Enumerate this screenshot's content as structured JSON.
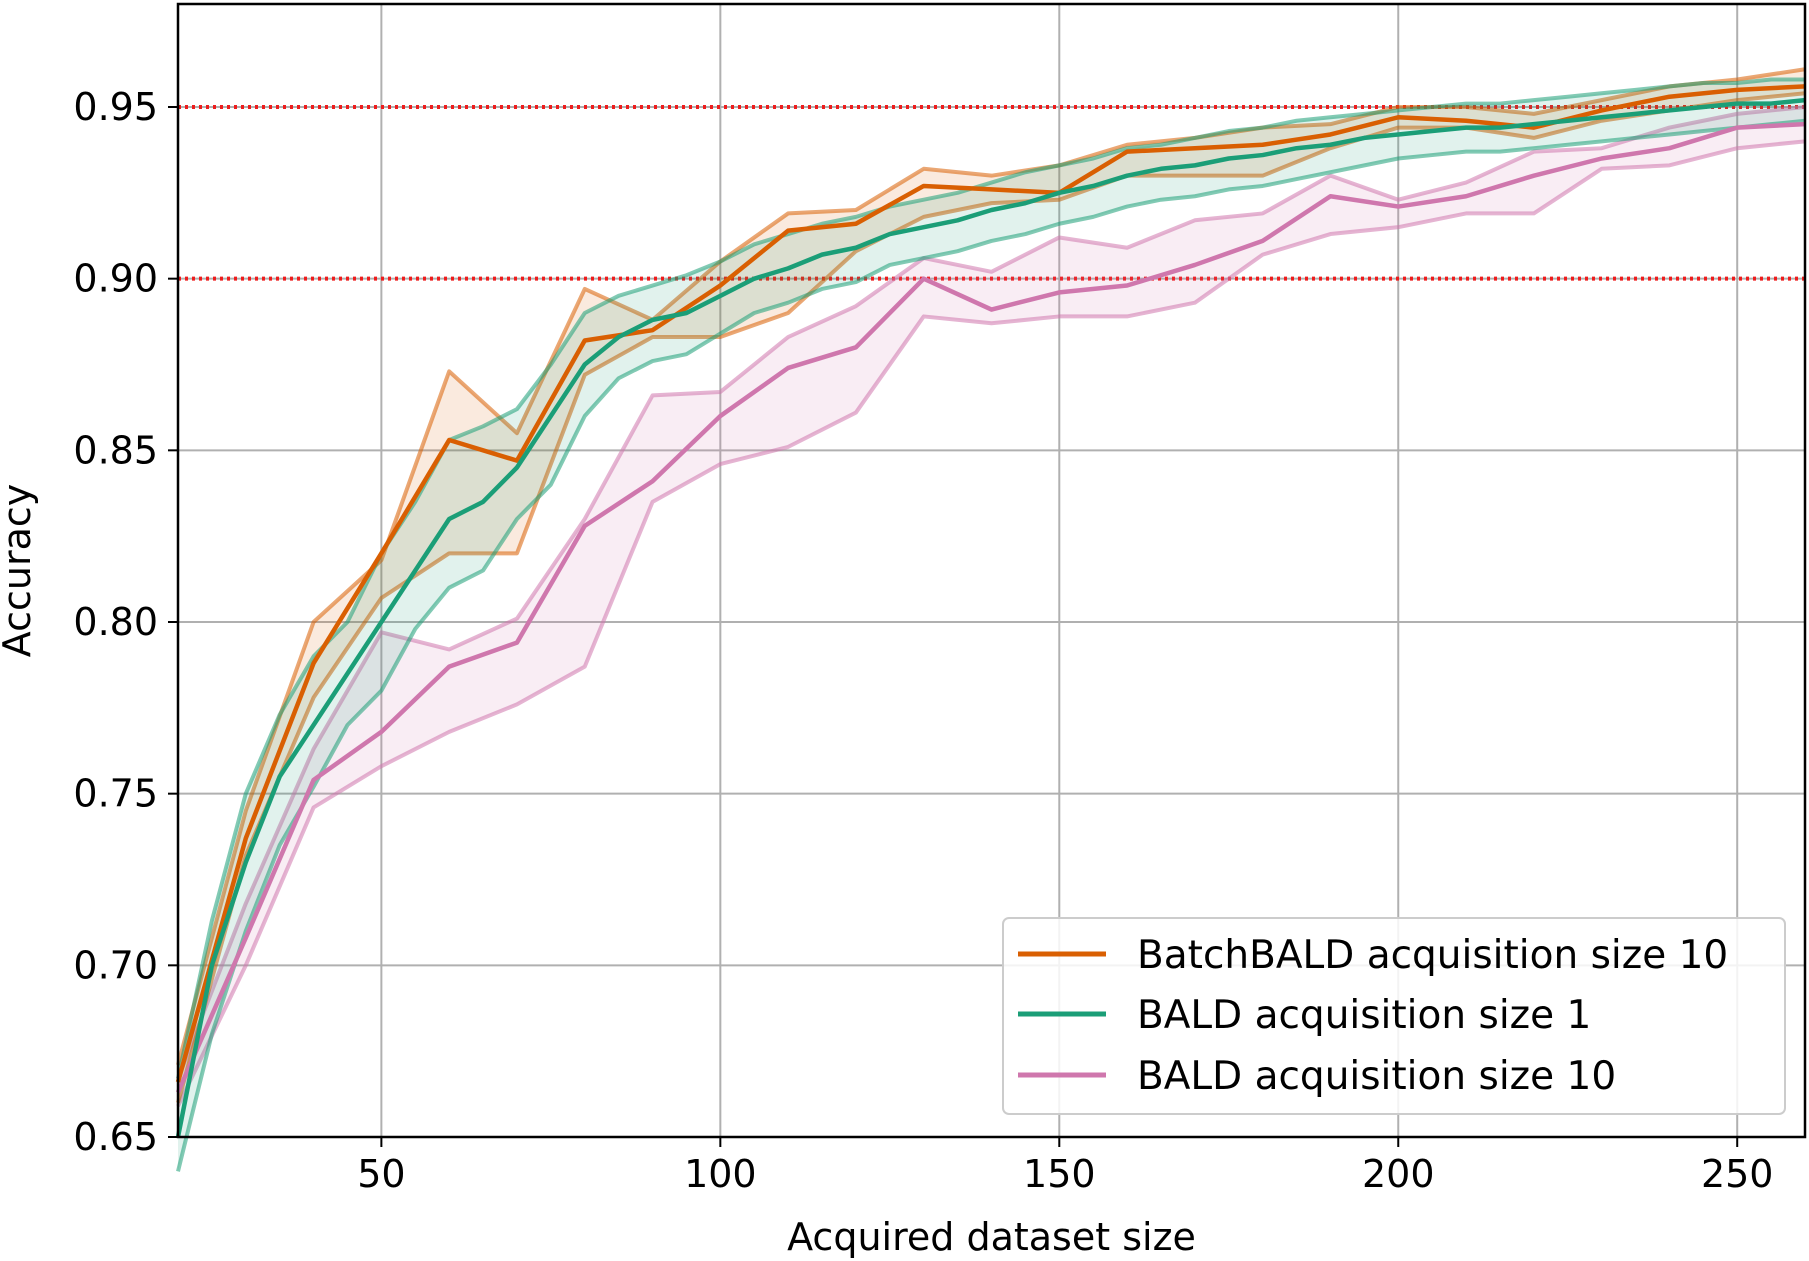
{
  "chart_data": {
    "type": "line",
    "title": "",
    "xlabel": "Acquired dataset size",
    "ylabel": "Accuracy",
    "xlim": [
      20,
      260
    ],
    "ylim": [
      0.65,
      0.98
    ],
    "x_ticks": [
      50,
      100,
      150,
      200,
      250
    ],
    "y_ticks": [
      0.65,
      0.7,
      0.75,
      0.8,
      0.85,
      0.9,
      0.95
    ],
    "x_tick_labels": [
      "50",
      "100",
      "150",
      "200",
      "250"
    ],
    "y_tick_labels": [
      "0.65",
      "0.70",
      "0.75",
      "0.80",
      "0.85",
      "0.90",
      "0.95"
    ],
    "grid": true,
    "legend_position": "bottom-right",
    "reference_lines": [
      {
        "y": 0.95,
        "style": "dotted",
        "color": "#ee1c1c"
      },
      {
        "y": 0.9,
        "style": "dotted",
        "color": "#ee1c1c"
      }
    ],
    "series": [
      {
        "name": "BatchBALD acquisition size 10",
        "color": "#d95f02",
        "x": [
          20,
          30,
          40,
          50,
          60,
          70,
          80,
          90,
          100,
          110,
          120,
          130,
          140,
          150,
          160,
          170,
          180,
          190,
          200,
          210,
          220,
          230,
          240,
          250,
          260
        ],
        "mean": [
          0.666,
          0.737,
          0.788,
          0.82,
          0.853,
          0.847,
          0.882,
          0.885,
          0.898,
          0.914,
          0.916,
          0.927,
          0.926,
          0.925,
          0.937,
          0.938,
          0.939,
          0.942,
          0.947,
          0.946,
          0.944,
          0.949,
          0.953,
          0.955,
          0.956
        ],
        "upper": [
          0.671,
          0.745,
          0.8,
          0.818,
          0.873,
          0.855,
          0.897,
          0.888,
          0.905,
          0.919,
          0.92,
          0.932,
          0.93,
          0.933,
          0.939,
          0.941,
          0.944,
          0.945,
          0.95,
          0.95,
          0.948,
          0.952,
          0.956,
          0.958,
          0.961
        ],
        "lower": [
          0.66,
          0.732,
          0.778,
          0.807,
          0.82,
          0.82,
          0.872,
          0.883,
          0.883,
          0.89,
          0.908,
          0.918,
          0.922,
          0.923,
          0.93,
          0.93,
          0.93,
          0.938,
          0.944,
          0.944,
          0.941,
          0.946,
          0.949,
          0.952,
          0.954
        ]
      },
      {
        "name": "BALD acquisition size 1",
        "color": "#1b9e77",
        "x": [
          20,
          25,
          30,
          35,
          40,
          45,
          50,
          55,
          60,
          65,
          70,
          75,
          80,
          85,
          90,
          95,
          100,
          105,
          110,
          115,
          120,
          125,
          130,
          135,
          140,
          145,
          150,
          155,
          160,
          165,
          170,
          175,
          180,
          185,
          190,
          195,
          200,
          205,
          210,
          215,
          220,
          225,
          230,
          235,
          240,
          245,
          250,
          255,
          260
        ],
        "mean": [
          0.65,
          0.7,
          0.73,
          0.755,
          0.77,
          0.785,
          0.8,
          0.815,
          0.83,
          0.835,
          0.845,
          0.86,
          0.875,
          0.883,
          0.888,
          0.89,
          0.895,
          0.9,
          0.903,
          0.907,
          0.909,
          0.913,
          0.915,
          0.917,
          0.92,
          0.922,
          0.925,
          0.927,
          0.93,
          0.932,
          0.933,
          0.935,
          0.936,
          0.938,
          0.939,
          0.941,
          0.942,
          0.943,
          0.944,
          0.944,
          0.945,
          0.946,
          0.947,
          0.948,
          0.949,
          0.95,
          0.951,
          0.951,
          0.952
        ],
        "upper": [
          0.667,
          0.713,
          0.75,
          0.773,
          0.79,
          0.8,
          0.82,
          0.835,
          0.853,
          0.857,
          0.862,
          0.875,
          0.89,
          0.895,
          0.898,
          0.901,
          0.905,
          0.91,
          0.913,
          0.916,
          0.918,
          0.921,
          0.923,
          0.925,
          0.928,
          0.931,
          0.933,
          0.935,
          0.938,
          0.939,
          0.941,
          0.943,
          0.944,
          0.946,
          0.947,
          0.948,
          0.949,
          0.95,
          0.951,
          0.951,
          0.952,
          0.953,
          0.954,
          0.955,
          0.956,
          0.957,
          0.957,
          0.958,
          0.958
        ],
        "lower": [
          0.64,
          0.68,
          0.71,
          0.735,
          0.752,
          0.77,
          0.78,
          0.798,
          0.81,
          0.815,
          0.83,
          0.84,
          0.86,
          0.871,
          0.876,
          0.878,
          0.884,
          0.89,
          0.893,
          0.897,
          0.899,
          0.904,
          0.906,
          0.908,
          0.911,
          0.913,
          0.916,
          0.918,
          0.921,
          0.923,
          0.924,
          0.926,
          0.927,
          0.929,
          0.931,
          0.933,
          0.935,
          0.936,
          0.937,
          0.937,
          0.938,
          0.939,
          0.94,
          0.941,
          0.942,
          0.943,
          0.944,
          0.945,
          0.946
        ]
      },
      {
        "name": "BALD acquisition size 10",
        "color": "#cf77ad",
        "x": [
          20,
          30,
          40,
          50,
          60,
          70,
          80,
          90,
          100,
          110,
          120,
          130,
          140,
          150,
          160,
          170,
          180,
          190,
          200,
          210,
          220,
          230,
          240,
          250,
          260
        ],
        "mean": [
          0.663,
          0.708,
          0.754,
          0.768,
          0.787,
          0.794,
          0.828,
          0.841,
          0.86,
          0.874,
          0.88,
          0.9,
          0.891,
          0.896,
          0.898,
          0.904,
          0.911,
          0.924,
          0.921,
          0.924,
          0.93,
          0.935,
          0.938,
          0.944,
          0.945
        ],
        "upper": [
          0.667,
          0.718,
          0.763,
          0.797,
          0.792,
          0.801,
          0.83,
          0.866,
          0.867,
          0.883,
          0.892,
          0.906,
          0.902,
          0.912,
          0.909,
          0.917,
          0.919,
          0.93,
          0.923,
          0.928,
          0.937,
          0.938,
          0.944,
          0.948,
          0.95
        ],
        "lower": [
          0.659,
          0.7,
          0.746,
          0.758,
          0.768,
          0.776,
          0.787,
          0.835,
          0.846,
          0.851,
          0.861,
          0.889,
          0.887,
          0.889,
          0.889,
          0.893,
          0.907,
          0.913,
          0.915,
          0.919,
          0.919,
          0.932,
          0.933,
          0.938,
          0.94
        ]
      }
    ]
  }
}
